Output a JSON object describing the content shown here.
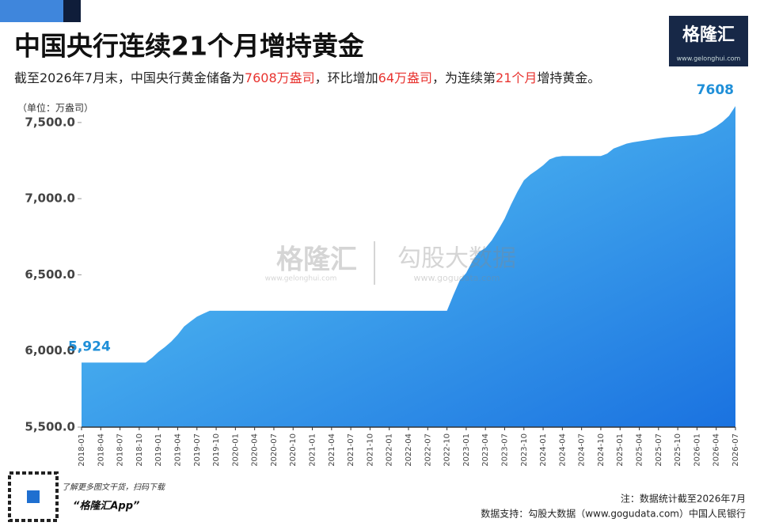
{
  "chart_data": {
    "type": "area",
    "title": "中国央行连续21个月增持黄金",
    "subtitle": [
      {
        "text": "截至2026年7月末，中国央行黄金储备为",
        "highlight": false
      },
      {
        "text": "7608万盎司",
        "highlight": true
      },
      {
        "text": "，环比增加",
        "highlight": false
      },
      {
        "text": "64万盎司",
        "highlight": true
      },
      {
        "text": "，为连续第",
        "highlight": false
      },
      {
        "text": "21个月",
        "highlight": true
      },
      {
        "text": "增持黄金。",
        "highlight": false
      }
    ],
    "unit_label": "（单位：万盎司）",
    "colors": {
      "area_top": "#5fcdf6",
      "area_bottom": "#1a72e0",
      "highlight": "#e8332f",
      "value_label": "#1f8fd8"
    },
    "categories": [
      "2018-01",
      null,
      null,
      "2018-04",
      null,
      null,
      "2018-07",
      null,
      null,
      "2018-10",
      null,
      null,
      "2019-01",
      null,
      null,
      "2019-04",
      null,
      null,
      "2019-07",
      null,
      null,
      "2019-10",
      null,
      null,
      "2020-01",
      null,
      null,
      "2020-04",
      null,
      null,
      "2020-07",
      null,
      null,
      "2020-10",
      null,
      null,
      "2021-01",
      null,
      null,
      "2021-04",
      null,
      null,
      "2021-07",
      null,
      null,
      "2021-10",
      null,
      null,
      "2022-01",
      null,
      null,
      "2022-04",
      null,
      null,
      "2022-07",
      null,
      null,
      "2022-10",
      null,
      null,
      "2023-01",
      null,
      null,
      "2023-04",
      null,
      null,
      "2023-07",
      null,
      null,
      "2023-10",
      null,
      null,
      "2024-01",
      null,
      null,
      "2024-04",
      null,
      null,
      "2024-07",
      null,
      null,
      "2024-10",
      null,
      null,
      "2025-01",
      null,
      null,
      "2025-04",
      null,
      null,
      "2025-07",
      null,
      null,
      "2025-10",
      null,
      null,
      "2026-01",
      null,
      null,
      "2026-04",
      null,
      null,
      "2026-07"
    ],
    "values": [
      5924,
      5924,
      5924,
      5924,
      5924,
      5924,
      5924,
      5924,
      5924,
      5924,
      5924,
      5956,
      5994,
      6026,
      6062,
      6107,
      6161,
      6194,
      6225,
      6245,
      6264,
      6264,
      6264,
      6264,
      6264,
      6264,
      6264,
      6264,
      6264,
      6264,
      6264,
      6264,
      6264,
      6264,
      6264,
      6264,
      6264,
      6264,
      6264,
      6264,
      6264,
      6264,
      6264,
      6264,
      6264,
      6264,
      6264,
      6264,
      6264,
      6264,
      6264,
      6264,
      6264,
      6264,
      6264,
      6264,
      6264,
      6264,
      6367,
      6464,
      6512,
      6592,
      6650,
      6676,
      6727,
      6795,
      6869,
      6962,
      7046,
      7120,
      7158,
      7187,
      7219,
      7258,
      7274,
      7280,
      7280,
      7280,
      7280,
      7280,
      7280,
      7280,
      7296,
      7329,
      7345,
      7361,
      7370,
      7377,
      7383,
      7390,
      7396,
      7402,
      7406,
      7409,
      7412,
      7415,
      7419,
      7430,
      7450,
      7475,
      7505,
      7544,
      7608
    ],
    "value_labels": [
      "5,924",
      null,
      null,
      null,
      null,
      null,
      null,
      null,
      null,
      null,
      null,
      null,
      null,
      null,
      null,
      null,
      null,
      null,
      null,
      null,
      null,
      null,
      null,
      null,
      null,
      null,
      null,
      null,
      null,
      null,
      null,
      null,
      null,
      null,
      null,
      null,
      null,
      null,
      null,
      null,
      null,
      null,
      null,
      null,
      null,
      null,
      null,
      null,
      null,
      null,
      null,
      null,
      null,
      null,
      null,
      null,
      null,
      null,
      null,
      null,
      null,
      null,
      null,
      null,
      null,
      null,
      null,
      null,
      null,
      null,
      null,
      null,
      null,
      null,
      null,
      null,
      null,
      null,
      null,
      null,
      null,
      null,
      null,
      null,
      null,
      null,
      null,
      null,
      null,
      null,
      null,
      null,
      null,
      null,
      null,
      null,
      null,
      null,
      null,
      null,
      null,
      null,
      "7608"
    ],
    "ylim": [
      5500,
      7650
    ],
    "yticks": [
      {
        "value": 5500,
        "label": "5,500.0"
      },
      {
        "value": 6000,
        "label": "6,000.0"
      },
      {
        "value": 6500,
        "label": "6,500.0"
      },
      {
        "value": 7000,
        "label": "7,000.0"
      },
      {
        "value": 7500,
        "label": "7,500.0"
      }
    ],
    "grid": false
  },
  "branding": {
    "logo": "格隆汇",
    "url": "www.gelonghui.com",
    "watermark": [
      "格隆汇",
      "www.gelonghui.com",
      "勾股大数据",
      "www.gogudata.com"
    ]
  },
  "footer": {
    "qr_text": "了解更多图文干货，扫码下载",
    "app": "“格隆汇App”",
    "note": "注：数据统计截至2026年7月",
    "source": "数据支持：勾股大数据（www.gogudata.com）中国人民银行"
  }
}
